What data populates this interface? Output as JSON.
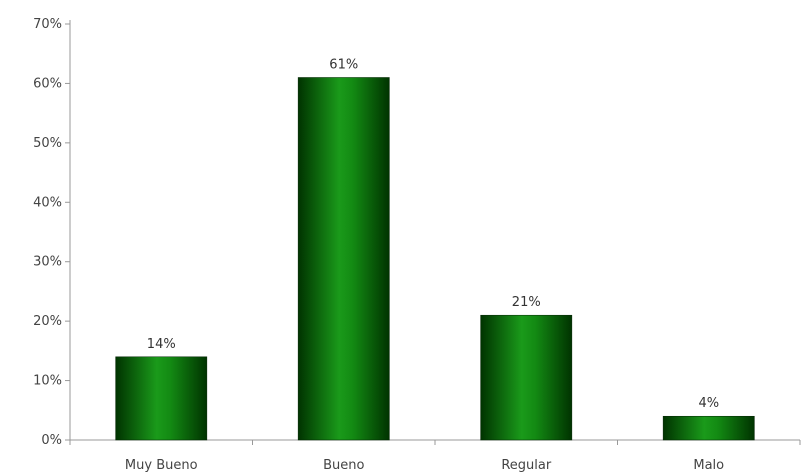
{
  "chart_data": {
    "type": "bar",
    "categories": [
      "Muy Bueno",
      "Bueno",
      "Regular",
      "Malo"
    ],
    "values": [
      14,
      61,
      21,
      4
    ],
    "value_labels": [
      "14%",
      "61%",
      "21%",
      "4%"
    ],
    "title": "",
    "xlabel": "",
    "ylabel": "",
    "ylim": [
      0,
      70
    ],
    "yticks": [
      0,
      10,
      20,
      30,
      40,
      50,
      60,
      70
    ],
    "ytick_labels": [
      "0%",
      "10%",
      "20%",
      "30%",
      "40%",
      "50%",
      "60%",
      "70%"
    ],
    "grid": false,
    "legend": "none",
    "colors": {
      "bar_dark": "#003300",
      "bar_mid": "#0a8a0a",
      "bar_light": "#1fa81f",
      "axis": "#999999"
    }
  }
}
